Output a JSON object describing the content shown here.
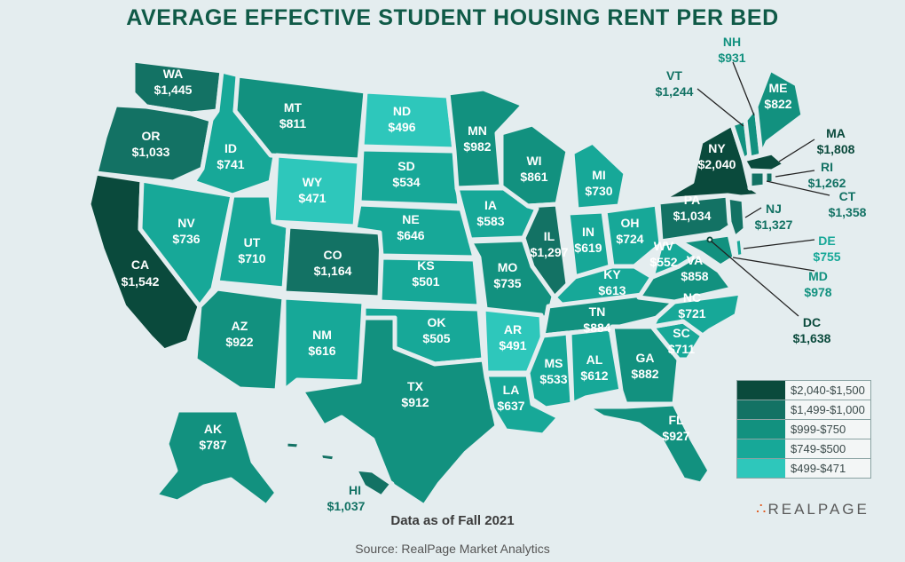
{
  "title": "AVERAGE EFFECTIVE STUDENT HOUSING RENT PER BED",
  "subtitle": "Data as of Fall 2021",
  "source": "Source: RealPage Market Analytics",
  "logo": "REALPAGE",
  "colors": {
    "tier1": "#0a4a3c",
    "tier2": "#137264",
    "tier3": "#12917f",
    "tier4": "#17a898",
    "tier5": "#2ec7bb",
    "title": "#0f5a47",
    "background": "#e4edef"
  },
  "legend": [
    {
      "label": "$2,040-$1,500",
      "tier": "tier1"
    },
    {
      "label": "$1,499-$1,000",
      "tier": "tier2"
    },
    {
      "label": "$999-$750",
      "tier": "tier3"
    },
    {
      "label": "$749-$500",
      "tier": "tier4"
    },
    {
      "label": "$499-$471",
      "tier": "tier5"
    }
  ],
  "states": {
    "WA": {
      "abbr": "WA",
      "rent": "$1,445"
    },
    "OR": {
      "abbr": "OR",
      "rent": "$1,033"
    },
    "CA": {
      "abbr": "CA",
      "rent": "$1,542"
    },
    "NV": {
      "abbr": "NV",
      "rent": "$736"
    },
    "ID": {
      "abbr": "ID",
      "rent": "$741"
    },
    "MT": {
      "abbr": "MT",
      "rent": "$811"
    },
    "WY": {
      "abbr": "WY",
      "rent": "$471"
    },
    "UT": {
      "abbr": "UT",
      "rent": "$710"
    },
    "AZ": {
      "abbr": "AZ",
      "rent": "$922"
    },
    "CO": {
      "abbr": "CO",
      "rent": "$1,164"
    },
    "NM": {
      "abbr": "NM",
      "rent": "$616"
    },
    "ND": {
      "abbr": "ND",
      "rent": "$496"
    },
    "SD": {
      "abbr": "SD",
      "rent": "$534"
    },
    "NE": {
      "abbr": "NE",
      "rent": "$646"
    },
    "KS": {
      "abbr": "KS",
      "rent": "$501"
    },
    "OK": {
      "abbr": "OK",
      "rent": "$505"
    },
    "TX": {
      "abbr": "TX",
      "rent": "$912"
    },
    "MN": {
      "abbr": "MN",
      "rent": "$982"
    },
    "IA": {
      "abbr": "IA",
      "rent": "$583"
    },
    "MO": {
      "abbr": "MO",
      "rent": "$735"
    },
    "AR": {
      "abbr": "AR",
      "rent": "$491"
    },
    "LA": {
      "abbr": "LA",
      "rent": "$637"
    },
    "WI": {
      "abbr": "WI",
      "rent": "$861"
    },
    "IL": {
      "abbr": "IL",
      "rent": "$1,297"
    },
    "MI": {
      "abbr": "MI",
      "rent": "$730"
    },
    "IN": {
      "abbr": "IN",
      "rent": "$619"
    },
    "OH": {
      "abbr": "OH",
      "rent": "$724"
    },
    "KY": {
      "abbr": "KY",
      "rent": "$613"
    },
    "TN": {
      "abbr": "TN",
      "rent": "$884"
    },
    "MS": {
      "abbr": "MS",
      "rent": "$533"
    },
    "AL": {
      "abbr": "AL",
      "rent": "$612"
    },
    "GA": {
      "abbr": "GA",
      "rent": "$882"
    },
    "FL": {
      "abbr": "FL",
      "rent": "$927"
    },
    "SC": {
      "abbr": "SC",
      "rent": "$711"
    },
    "NC": {
      "abbr": "NC",
      "rent": "$721"
    },
    "VA": {
      "abbr": "VA",
      "rent": "$858"
    },
    "WV": {
      "abbr": "WV",
      "rent": "$552"
    },
    "PA": {
      "abbr": "PA",
      "rent": "$1,034"
    },
    "NY": {
      "abbr": "NY",
      "rent": "$2,040"
    },
    "VT": {
      "abbr": "VT",
      "rent": "$1,244"
    },
    "NH": {
      "abbr": "NH",
      "rent": "$931"
    },
    "ME": {
      "abbr": "ME",
      "rent": "$822"
    },
    "MA": {
      "abbr": "MA",
      "rent": "$1,808"
    },
    "RI": {
      "abbr": "RI",
      "rent": "$1,262"
    },
    "CT": {
      "abbr": "CT",
      "rent": "$1,358"
    },
    "NJ": {
      "abbr": "NJ",
      "rent": "$1,327"
    },
    "DE": {
      "abbr": "DE",
      "rent": "$755"
    },
    "MD": {
      "abbr": "MD",
      "rent": "$978"
    },
    "DC": {
      "abbr": "DC",
      "rent": "$1,638"
    },
    "AK": {
      "abbr": "AK",
      "rent": "$787"
    },
    "HI": {
      "abbr": "HI",
      "rent": "$1,037"
    }
  }
}
